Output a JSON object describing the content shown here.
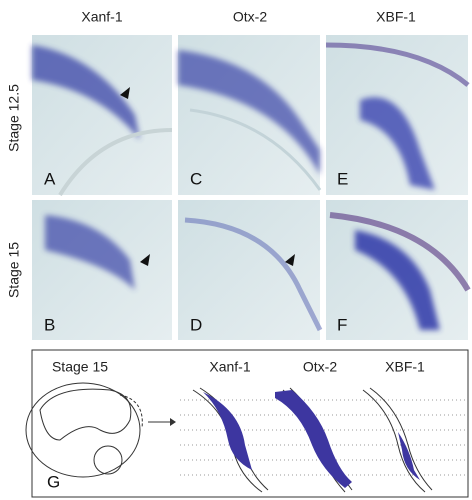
{
  "columns": [
    "Xanf-1",
    "Otx-2",
    "XBF-1"
  ],
  "rows": [
    "Stage 12.5",
    "Stage 15"
  ],
  "panels": [
    [
      "A",
      "C",
      "E"
    ],
    [
      "B",
      "D",
      "F"
    ]
  ],
  "diagram": {
    "label": "G",
    "stage": "Stage 15",
    "genes": [
      "Xanf-1",
      "Otx-2",
      "XBF-1"
    ]
  }
}
